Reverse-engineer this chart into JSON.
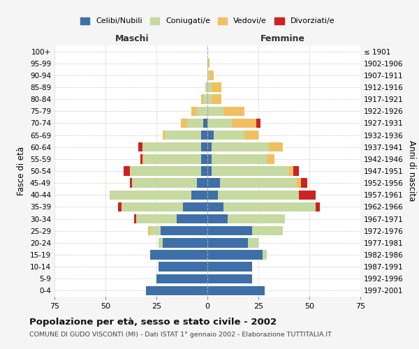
{
  "age_groups": [
    "0-4",
    "5-9",
    "10-14",
    "15-19",
    "20-24",
    "25-29",
    "30-34",
    "35-39",
    "40-44",
    "45-49",
    "50-54",
    "55-59",
    "60-64",
    "65-69",
    "70-74",
    "75-79",
    "80-84",
    "85-89",
    "90-94",
    "95-99",
    "100+"
  ],
  "birth_years": [
    "1997-2001",
    "1992-1996",
    "1987-1991",
    "1982-1986",
    "1977-1981",
    "1972-1976",
    "1967-1971",
    "1962-1966",
    "1957-1961",
    "1952-1956",
    "1947-1951",
    "1942-1946",
    "1937-1941",
    "1932-1936",
    "1927-1931",
    "1922-1926",
    "1917-1921",
    "1912-1916",
    "1907-1911",
    "1902-1906",
    "≤ 1901"
  ],
  "maschi": {
    "celibi": [
      30,
      25,
      24,
      28,
      22,
      23,
      15,
      12,
      8,
      5,
      3,
      3,
      3,
      3,
      2,
      0,
      0,
      0,
      0,
      0,
      0
    ],
    "coniugati": [
      0,
      0,
      0,
      0,
      2,
      5,
      20,
      30,
      40,
      32,
      35,
      28,
      29,
      18,
      8,
      5,
      2,
      1,
      0,
      0,
      0
    ],
    "vedovi": [
      0,
      0,
      0,
      0,
      0,
      1,
      0,
      0,
      0,
      0,
      0,
      1,
      0,
      1,
      3,
      3,
      1,
      0,
      0,
      0,
      0
    ],
    "divorziati": [
      0,
      0,
      0,
      0,
      0,
      0,
      1,
      2,
      0,
      1,
      3,
      1,
      2,
      0,
      0,
      0,
      0,
      0,
      0,
      0,
      0
    ]
  },
  "femmine": {
    "nubili": [
      28,
      22,
      22,
      27,
      20,
      22,
      10,
      8,
      5,
      6,
      2,
      2,
      2,
      3,
      0,
      0,
      0,
      0,
      0,
      0,
      0
    ],
    "coniugate": [
      0,
      0,
      0,
      2,
      5,
      15,
      28,
      45,
      40,
      38,
      38,
      27,
      28,
      15,
      12,
      8,
      2,
      2,
      1,
      0,
      0
    ],
    "vedove": [
      0,
      0,
      0,
      0,
      0,
      0,
      0,
      0,
      0,
      2,
      2,
      4,
      7,
      7,
      12,
      10,
      5,
      5,
      2,
      1,
      0
    ],
    "divorziate": [
      0,
      0,
      0,
      0,
      0,
      0,
      0,
      2,
      8,
      3,
      3,
      0,
      0,
      0,
      2,
      0,
      0,
      0,
      0,
      0,
      0
    ]
  },
  "colors": {
    "celibi": "#3e6fa8",
    "coniugati": "#c5d9a0",
    "vedovi": "#f0c060",
    "divorziati": "#cc2222"
  },
  "title": "Popolazione per età, sesso e stato civile - 2002",
  "subtitle": "COMUNE DI GUDO VISCONTI (MI) - Dati ISTAT 1° gennaio 2002 - Elaborazione TUTTITALIA.IT",
  "xlabel_left": "Maschi",
  "xlabel_right": "Femmine",
  "ylabel_left": "Fasce di età",
  "ylabel_right": "Anni di nascita",
  "xlim": 75,
  "legend_labels": [
    "Celibi/Nubili",
    "Coniugati/e",
    "Vedovi/e",
    "Divorziati/e"
  ],
  "bg_color": "#f5f5f5",
  "plot_bg": "#ffffff"
}
